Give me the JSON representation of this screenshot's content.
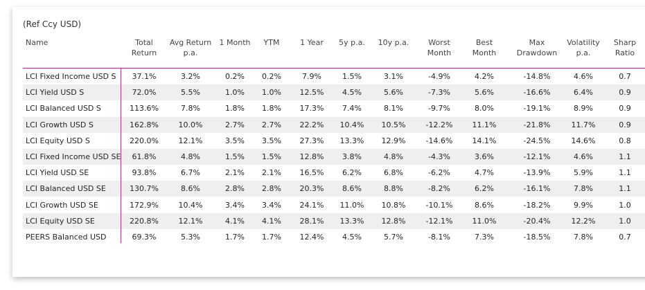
{
  "title": "(Ref Ccy USD)",
  "table": {
    "headers": [
      [
        "Name"
      ],
      [
        "Total",
        "Return"
      ],
      [
        "Avg Return",
        "p.a."
      ],
      [
        "1 Month"
      ],
      [
        "YTM"
      ],
      [
        "1 Year"
      ],
      [
        "5y p.a."
      ],
      [
        "10y p.a."
      ],
      [
        "Worst",
        "Month"
      ],
      [
        "Best",
        "Month"
      ],
      [
        "Max",
        "Drawdown"
      ],
      [
        "Volatility",
        "p.a."
      ],
      [
        "Sharp",
        "Ratio"
      ]
    ],
    "rows": [
      [
        "LCI Fixed Income USD S",
        "37.1%",
        "3.2%",
        "0.2%",
        "0.2%",
        "7.9%",
        "1.5%",
        "3.1%",
        "-4.9%",
        "4.2%",
        "-14.8%",
        "4.6%",
        "0.7"
      ],
      [
        "LCI Yield USD S",
        "72.0%",
        "5.5%",
        "1.0%",
        "1.0%",
        "12.5%",
        "4.5%",
        "5.6%",
        "-7.3%",
        "5.6%",
        "-16.6%",
        "6.4%",
        "0.9"
      ],
      [
        "LCI Balanced USD S",
        "113.6%",
        "7.8%",
        "1.8%",
        "1.8%",
        "17.3%",
        "7.4%",
        "8.1%",
        "-9.7%",
        "8.0%",
        "-19.1%",
        "8.9%",
        "0.9"
      ],
      [
        "LCI Growth USD S",
        "162.8%",
        "10.0%",
        "2.7%",
        "2.7%",
        "22.2%",
        "10.4%",
        "10.5%",
        "-12.2%",
        "11.1%",
        "-21.8%",
        "11.7%",
        "0.9"
      ],
      [
        "LCI Equity USD S",
        "220.0%",
        "12.1%",
        "3.5%",
        "3.5%",
        "27.3%",
        "13.3%",
        "12.9%",
        "-14.6%",
        "14.1%",
        "-24.5%",
        "14.6%",
        "0.8"
      ],
      [
        "LCI Fixed Income USD SE",
        "61.8%",
        "4.8%",
        "1.5%",
        "1.5%",
        "12.8%",
        "3.8%",
        "4.8%",
        "-4.3%",
        "3.6%",
        "-12.1%",
        "4.6%",
        "1.1"
      ],
      [
        "LCI Yield USD SE",
        "93.8%",
        "6.7%",
        "2.1%",
        "2.1%",
        "16.5%",
        "6.2%",
        "6.8%",
        "-6.2%",
        "4.7%",
        "-13.9%",
        "5.9%",
        "1.1"
      ],
      [
        "LCI Balanced USD SE",
        "130.7%",
        "8.6%",
        "2.8%",
        "2.8%",
        "20.3%",
        "8.6%",
        "8.8%",
        "-8.2%",
        "6.2%",
        "-16.1%",
        "7.8%",
        "1.1"
      ],
      [
        "LCI Growth USD SE",
        "172.9%",
        "10.4%",
        "3.4%",
        "3.4%",
        "24.1%",
        "11.0%",
        "10.8%",
        "-10.1%",
        "8.6%",
        "-18.2%",
        "9.9%",
        "1.0"
      ],
      [
        "LCI Equity USD SE",
        "220.8%",
        "12.1%",
        "4.1%",
        "4.1%",
        "28.1%",
        "13.3%",
        "12.8%",
        "-12.1%",
        "11.0%",
        "-20.4%",
        "12.2%",
        "1.0"
      ],
      [
        "PEERS Balanced USD",
        "69.3%",
        "5.3%",
        "1.7%",
        "1.7%",
        "12.4%",
        "4.5%",
        "5.7%",
        "-8.1%",
        "7.3%",
        "-18.5%",
        "7.8%",
        "0.7"
      ]
    ]
  }
}
